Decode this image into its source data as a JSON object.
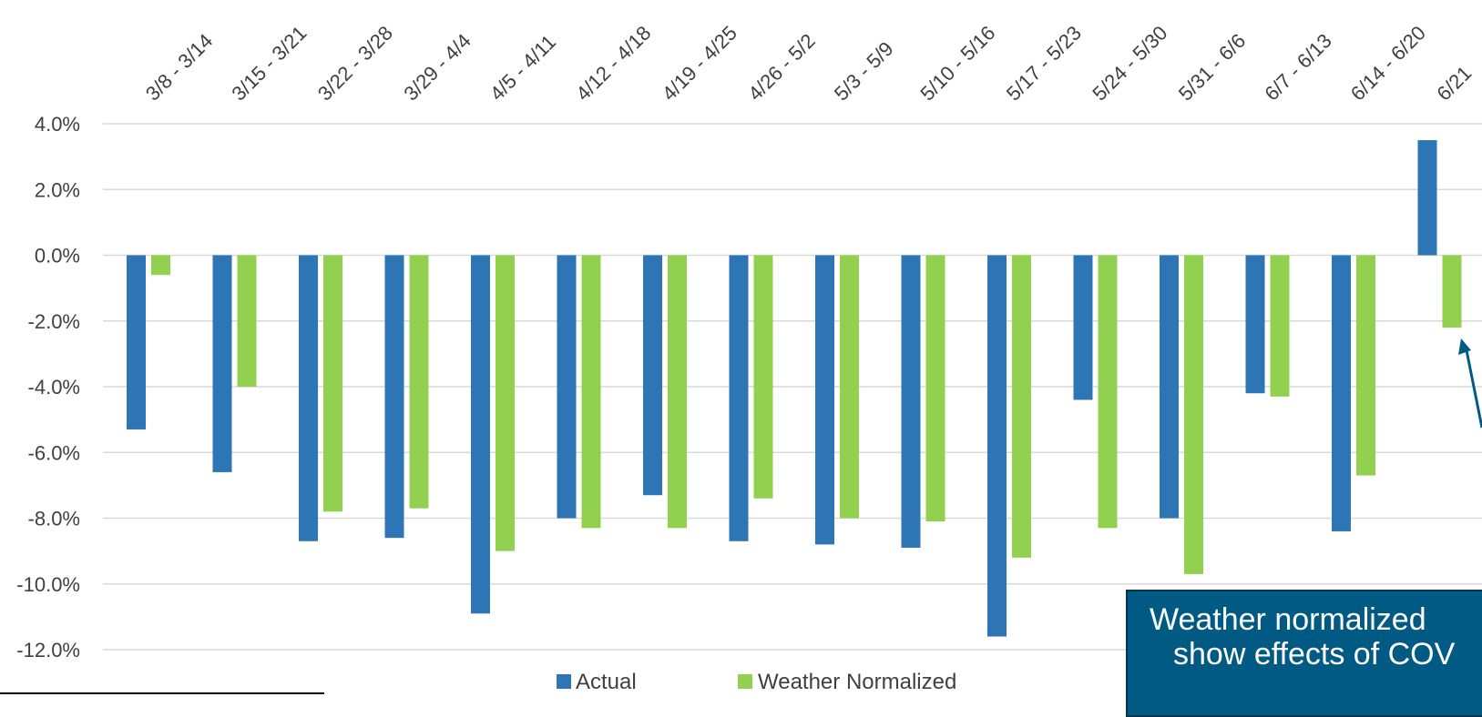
{
  "chart_data": {
    "type": "bar",
    "categories": [
      "3/8 - 3/14",
      "3/15 - 3/21",
      "3/22 - 3/28",
      "3/29 - 4/4",
      "4/5 - 4/11",
      "4/12 - 4/18",
      "4/19 - 4/25",
      "4/26 - 5/2",
      "5/3 - 5/9",
      "5/10 - 5/16",
      "5/17 - 5/23",
      "5/24 - 5/30",
      "5/31 - 6/6",
      "6/7 - 6/13",
      "6/14 - 6/20",
      "6/21"
    ],
    "series": [
      {
        "name": "Actual",
        "color": "#2e75b6",
        "values": [
          -5.3,
          -6.6,
          -8.7,
          -8.6,
          -10.9,
          -8.0,
          -7.3,
          -8.7,
          -8.8,
          -8.9,
          -11.6,
          -4.4,
          -8.0,
          -4.2,
          -8.4,
          3.5
        ]
      },
      {
        "name": "Weather Normalized",
        "color": "#92d050",
        "values": [
          -0.6,
          -4.0,
          -7.8,
          -7.7,
          -9.0,
          -8.3,
          -8.3,
          -7.4,
          -8.0,
          -8.1,
          -9.2,
          -8.3,
          -9.7,
          -4.3,
          -6.7,
          -2.2
        ]
      }
    ],
    "yticks": [
      "4.0%",
      "2.0%",
      "0.0%",
      "-2.0%",
      "-4.0%",
      "-6.0%",
      "-8.0%",
      "-10.0%",
      "-12.0%"
    ],
    "ylim": [
      -12,
      4
    ],
    "grid": true,
    "legend": "bottom"
  },
  "callout": {
    "line1": "Weather normalized",
    "line2": "show effects of COV",
    "color": "#005a84"
  }
}
